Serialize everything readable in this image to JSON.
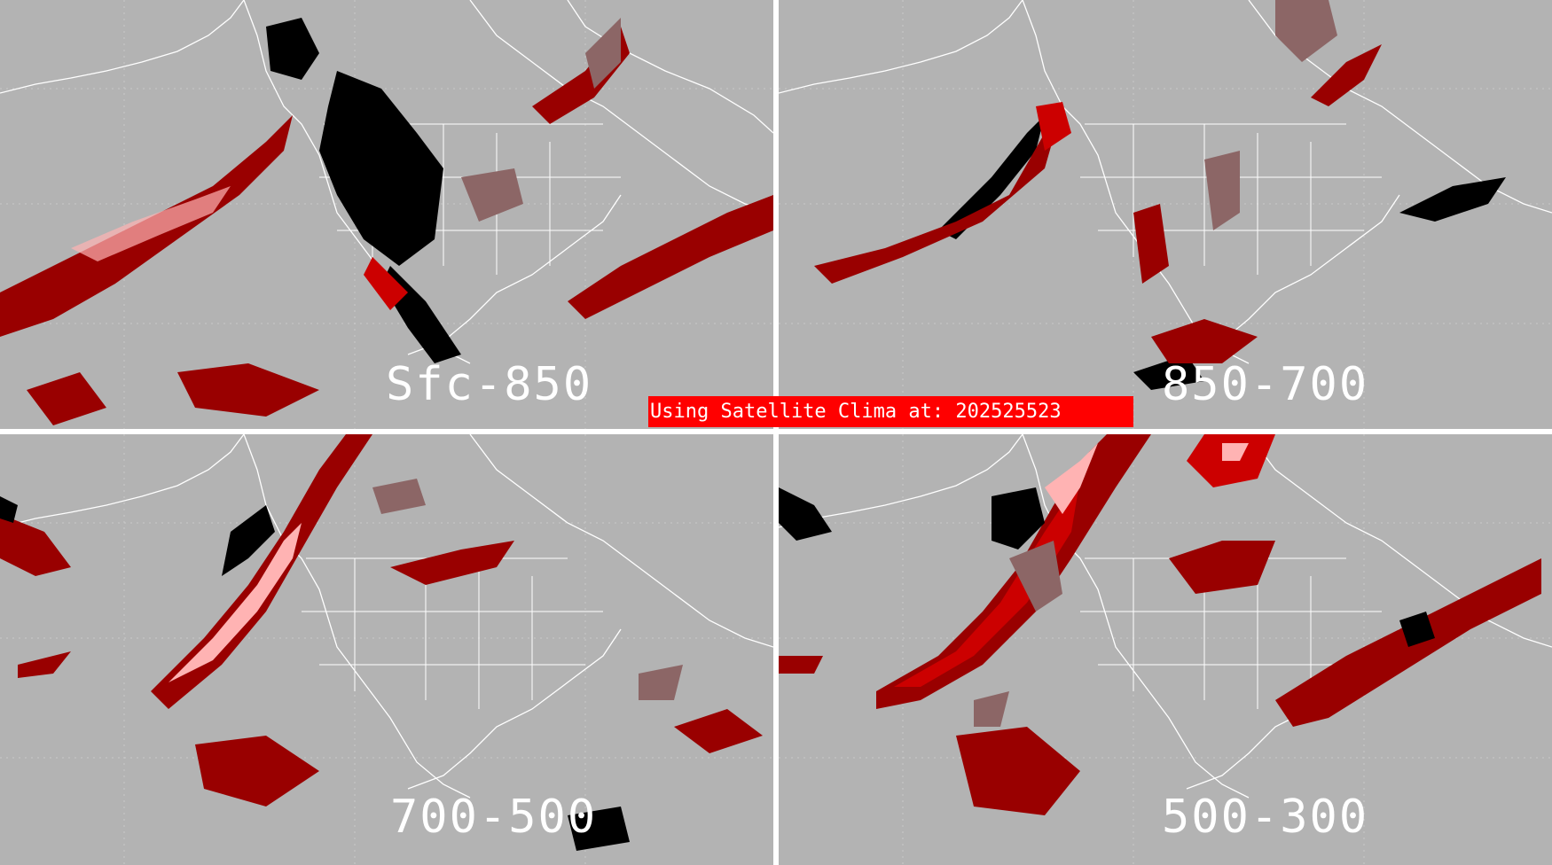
{
  "banner": {
    "text": "Using Satellite Clima at: 202525523"
  },
  "panels": [
    {
      "label": "Sfc-850"
    },
    {
      "label": "850-700"
    },
    {
      "label": "700-500"
    },
    {
      "label": "500-300"
    }
  ],
  "colors": {
    "background": "#b3b3b3",
    "dark_red": "#990000",
    "mid_red": "#cc0000",
    "pink": "#ffb3b3",
    "brown": "#8c6666",
    "black": "#000000",
    "coastline": "#ffffff",
    "banner": "#ff0000"
  }
}
